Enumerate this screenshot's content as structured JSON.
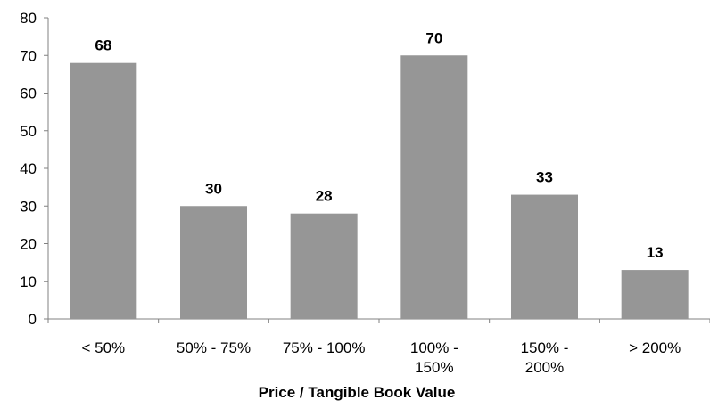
{
  "chart_data": {
    "type": "bar",
    "categories": [
      [
        "< 50%"
      ],
      [
        "50% - 75%"
      ],
      [
        "75% - 100%"
      ],
      [
        "100% -",
        "150%"
      ],
      [
        "150% -",
        "200%"
      ],
      [
        "> 200%"
      ]
    ],
    "values": [
      68,
      30,
      28,
      70,
      33,
      13
    ],
    "data_labels": [
      "68",
      "30",
      "28",
      "70",
      "33",
      "13"
    ],
    "xlabel": "Price / Tangible Book Value",
    "ylabel": "",
    "ylim": [
      0,
      80
    ],
    "yticks": [
      "0",
      "10",
      "20",
      "30",
      "40",
      "50",
      "60",
      "70",
      "80"
    ],
    "grid": false,
    "legend": "none",
    "bar_color": "#969696"
  }
}
